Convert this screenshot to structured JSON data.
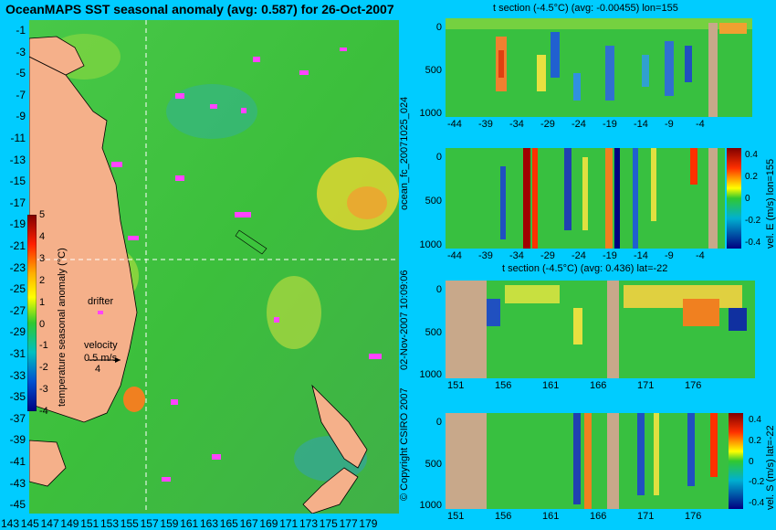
{
  "map": {
    "title": "OceanMAPS SST seasonal anomaly (avg: 0.587) for 26-Oct-2007",
    "colorbar_label": "temperature seasonal anomaly (°C)",
    "colorbar_ticks": [
      "5",
      "4",
      "3",
      "2",
      "1",
      "0",
      "-1",
      "-2",
      "-3",
      "-4"
    ],
    "lat_ticks": [
      "-1",
      "-3",
      "-5",
      "-7",
      "-9",
      "-11",
      "-13",
      "-15",
      "-17",
      "-19",
      "-21",
      "-23",
      "-25",
      "-27",
      "-29",
      "-31",
      "-33",
      "-35",
      "-37",
      "-39",
      "-41",
      "-43",
      "-45"
    ],
    "lon_ticks": [
      "143",
      "145",
      "147",
      "149",
      "151",
      "153",
      "155",
      "157",
      "159",
      "161",
      "163",
      "165",
      "167",
      "169",
      "171",
      "173",
      "175",
      "177",
      "179"
    ],
    "drifter_label": "drifter",
    "velocity_label": "velocity",
    "velocity_value": "0.5 m/s",
    "velocity_count": "4"
  },
  "panels": [
    {
      "id": "t-section-lon",
      "title": "t section (-4.5°C) (avg: -0.00455) lon=155",
      "x_ticks": [
        "-44",
        "-39",
        "-34",
        "-29",
        "-24",
        "-19",
        "-14",
        "-9",
        "-4"
      ],
      "y_ticks": [
        "0",
        "500",
        "1000"
      ]
    },
    {
      "id": "vel-e-lon",
      "title": "",
      "x_ticks": [
        "-44",
        "-39",
        "-34",
        "-29",
        "-24",
        "-19",
        "-14",
        "-9",
        "-4"
      ],
      "y_ticks": [
        "0",
        "500",
        "1000"
      ],
      "colorbar_label": "vel. E (m/s) lon=155",
      "colorbar_ticks": [
        "0.4",
        "0.2",
        "0",
        "-0.2",
        "-0.4"
      ]
    },
    {
      "id": "t-section-lat",
      "title": "t section (-4.5°C) (avg: 0.436) lat=-22",
      "x_ticks": [
        "151",
        "156",
        "161",
        "166",
        "171",
        "176"
      ],
      "y_ticks": [
        "0",
        "500",
        "1000"
      ]
    },
    {
      "id": "vel-s-lat",
      "title": "",
      "x_ticks": [
        "151",
        "156",
        "161",
        "166",
        "171",
        "176"
      ],
      "y_ticks": [
        "0",
        "500",
        "1000"
      ],
      "colorbar_label": "vel. S (m/s) lat=-22",
      "colorbar_ticks": [
        "0.4",
        "0.2",
        "0",
        "-0.2",
        "-0.4"
      ]
    }
  ],
  "side_labels": {
    "forecast_id": "ocean_fc_20071025_024",
    "issued": "02-Nov-2007 10:09:06",
    "copyright": "© Copyright CSIRO 2007"
  },
  "colors": {
    "background": "#00ccff",
    "land": "#f5b08a",
    "section_land": "#c8a88a",
    "ocean": "#3cc43c",
    "drifter": "#ff44ff"
  }
}
